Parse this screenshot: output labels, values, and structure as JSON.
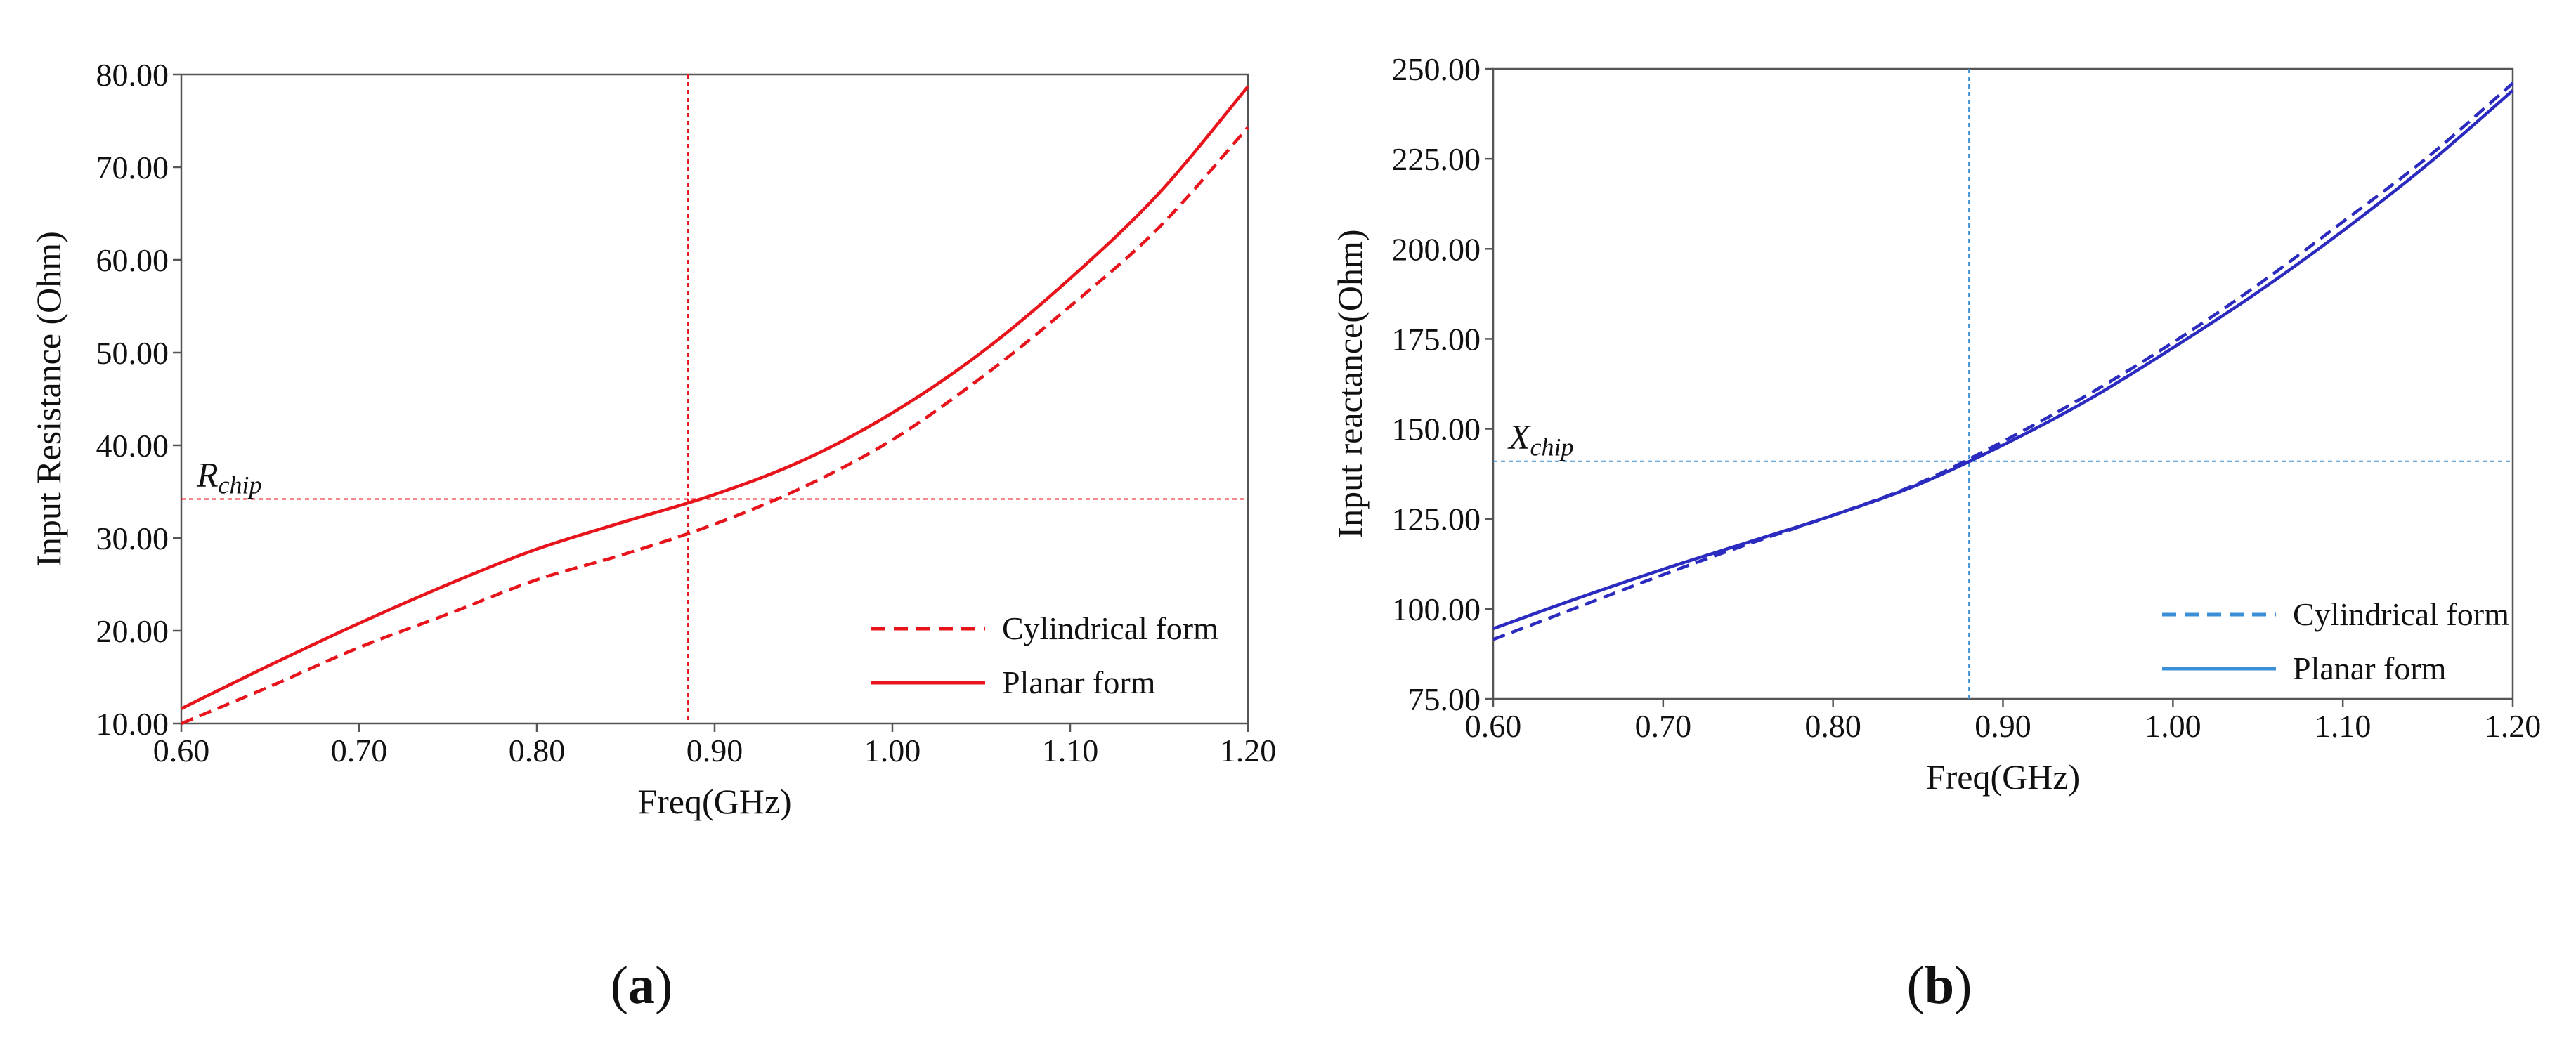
{
  "chart_data": [
    {
      "type": "line",
      "panel_label": "a",
      "xlabel": "Freq(GHz)",
      "ylabel": "Input Resistance (Ohm)",
      "xlim": [
        0.6,
        1.2
      ],
      "ylim": [
        10.0,
        80.0
      ],
      "x_ticks": [
        "0.60",
        "0.70",
        "0.80",
        "0.90",
        "1.00",
        "1.10",
        "1.20"
      ],
      "y_ticks": [
        "10.00",
        "20.00",
        "30.00",
        "40.00",
        "50.00",
        "60.00",
        "70.00",
        "80.00"
      ],
      "color": "#e8141b",
      "grid": false,
      "legend_position": "bottom-right",
      "reference": {
        "base": "R",
        "sub": "chip",
        "x": 0.885,
        "y": 34.2
      },
      "x": [
        0.6,
        0.65,
        0.7,
        0.75,
        0.8,
        0.85,
        0.9,
        0.95,
        1.0,
        1.05,
        1.1,
        1.15,
        1.2
      ],
      "series": [
        {
          "name": "Cylindrical form",
          "style": "dashed",
          "values": [
            10.0,
            14.0,
            18.2,
            21.8,
            25.5,
            28.3,
            31.5,
            35.5,
            40.6,
            47.3,
            55.0,
            63.5,
            74.3
          ]
        },
        {
          "name": "Planar form",
          "style": "solid",
          "values": [
            11.6,
            16.3,
            20.8,
            25.0,
            28.8,
            31.8,
            34.7,
            38.4,
            43.5,
            50.0,
            58.0,
            67.2,
            78.7
          ]
        }
      ]
    },
    {
      "type": "line",
      "panel_label": "b",
      "xlabel": "Freq(GHz)",
      "ylabel": "Input reactance(Ohm)",
      "xlim": [
        0.6,
        1.2
      ],
      "ylim": [
        75.0,
        250.0
      ],
      "x_ticks": [
        "0.60",
        "0.70",
        "0.80",
        "0.90",
        "1.00",
        "1.10",
        "1.20"
      ],
      "y_ticks": [
        "75.00",
        "100.00",
        "125.00",
        "150.00",
        "175.00",
        "200.00",
        "225.00",
        "250.00"
      ],
      "color": "#2b2bbf",
      "ref_color": "#3a8fd6",
      "grid": false,
      "legend_position": "bottom-right",
      "reference": {
        "base": "X",
        "sub": "chip",
        "x": 0.88,
        "y": 141.0
      },
      "x": [
        0.6,
        0.65,
        0.7,
        0.75,
        0.8,
        0.85,
        0.9,
        0.95,
        1.0,
        1.05,
        1.1,
        1.15,
        1.2
      ],
      "series": [
        {
          "name": "Cylindrical form",
          "style": "dashed",
          "values": [
            91.5,
            100.5,
            109.5,
            118.0,
            126.0,
            134.8,
            146.5,
            159.5,
            174.0,
            190.0,
            207.5,
            225.5,
            246.0
          ]
        },
        {
          "name": "Planar form",
          "style": "solid",
          "values": [
            94.5,
            103.0,
            111.0,
            118.5,
            126.0,
            134.5,
            145.5,
            158.0,
            172.5,
            188.0,
            205.0,
            223.5,
            244.0
          ]
        }
      ]
    }
  ]
}
